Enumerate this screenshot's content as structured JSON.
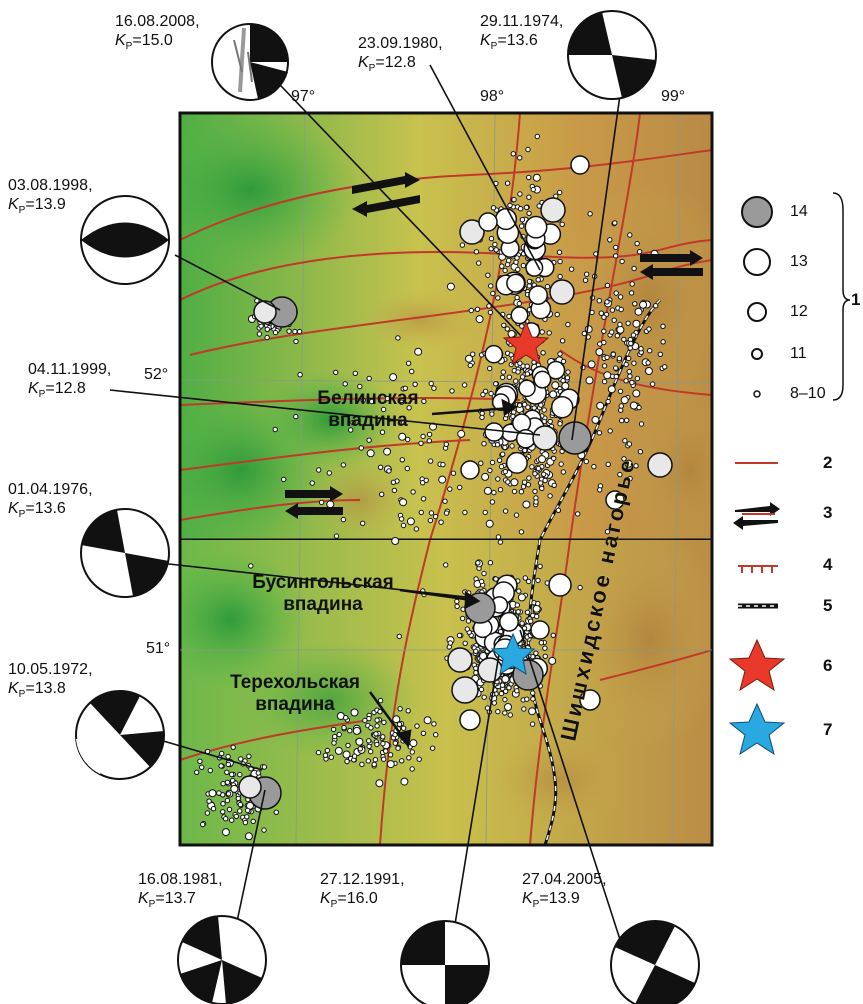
{
  "coordinates": {
    "lon_97": "97°",
    "lon_98": "98°",
    "lon_99": "99°",
    "lat_52": "52°",
    "lat_51": "51°"
  },
  "map_labels": {
    "belinskaya_1": "Белинская",
    "belinskaya_2": "впадина",
    "busingolskaya_1": "Бусингольская",
    "busingolskaya_2": "впадина",
    "terekholskaya_1": "Терехольская",
    "terekholskaya_2": "впадина",
    "highland": "Шишхидское нагорье"
  },
  "earthquakes": [
    {
      "date": "16.08.2008,",
      "k": "15.0"
    },
    {
      "date": "23.09.1980,",
      "k": "12.8"
    },
    {
      "date": "29.11.1974,",
      "k": "13.6"
    },
    {
      "date": "03.08.1998,",
      "k": "13.9"
    },
    {
      "date": "04.11.1999,",
      "k": "12.8"
    },
    {
      "date": "01.04.1976,",
      "k": "13.6"
    },
    {
      "date": "10.05.1972,",
      "k": "13.8"
    },
    {
      "date": "16.08.1981,",
      "k": "13.7"
    },
    {
      "date": "27.12.1991,",
      "k": "16.0"
    },
    {
      "date": "27.04.2005,",
      "k": "13.9"
    }
  ],
  "k_symbol": "K",
  "k_sub": "P",
  "legend": {
    "magnitudes": [
      "14",
      "13",
      "12",
      "11",
      "8–10"
    ],
    "codes": [
      "1",
      "2",
      "3",
      "4",
      "5",
      "6",
      "7"
    ]
  },
  "colors": {
    "fault": "#c0392b",
    "red_star": "#e8392a",
    "blue_star": "#2aa8e0",
    "gray_quake": "#9a9a9a"
  }
}
